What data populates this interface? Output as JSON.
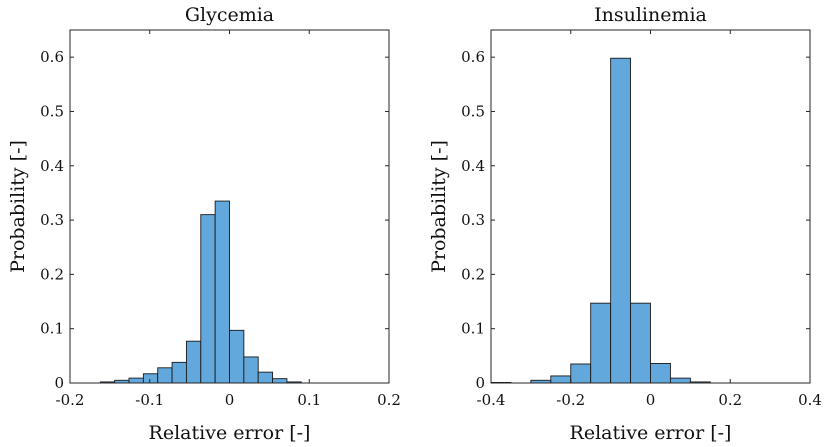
{
  "chart_data": [
    {
      "type": "histogram",
      "title": "Glycemia",
      "xlabel": "Relative error [-]",
      "ylabel": "Probability [-]",
      "xlim": [
        -0.2,
        0.2
      ],
      "ylim": [
        0,
        0.65
      ],
      "xticks": [
        -0.2,
        -0.1,
        0,
        0.1,
        0.2
      ],
      "xtick_labels": [
        "-0.2",
        "-0.1",
        "0",
        "0.1",
        "0.2"
      ],
      "yticks": [
        0,
        0.1,
        0.2,
        0.3,
        0.4,
        0.5,
        0.6
      ],
      "ytick_labels": [
        "0",
        "0.1",
        "0.2",
        "0.3",
        "0.4",
        "0.5",
        "0.6"
      ],
      "bar_color": "#62a8dc",
      "bin_edges": [
        -0.162,
        -0.144,
        -0.126,
        -0.108,
        -0.09,
        -0.072,
        -0.054,
        -0.036,
        -0.018,
        0.0,
        0.018,
        0.036,
        0.054,
        0.072,
        0.09,
        0.108,
        0.126
      ],
      "values": [
        0.002,
        0.005,
        0.009,
        0.017,
        0.028,
        0.038,
        0.077,
        0.31,
        0.335,
        0.097,
        0.048,
        0.02,
        0.008,
        0.002,
        0.0,
        0.0
      ]
    },
    {
      "type": "histogram",
      "title": "Insulinemia",
      "xlabel": "Relative error [-]",
      "ylabel": "Probability [-]",
      "xlim": [
        -0.4,
        0.4
      ],
      "ylim": [
        0,
        0.65
      ],
      "xticks": [
        -0.4,
        -0.2,
        0,
        0.2,
        0.4
      ],
      "xtick_labels": [
        "-0.4",
        "-0.2",
        "0",
        "0.2",
        "0.4"
      ],
      "yticks": [
        0,
        0.1,
        0.2,
        0.3,
        0.4,
        0.5,
        0.6
      ],
      "ytick_labels": [
        "0",
        "0.1",
        "0.2",
        "0.3",
        "0.4",
        "0.5",
        "0.6"
      ],
      "bar_color": "#62a8dc",
      "bin_edges": [
        -0.4,
        -0.35,
        -0.3,
        -0.25,
        -0.2,
        -0.15,
        -0.1,
        -0.05,
        0.0,
        0.05,
        0.1,
        0.15,
        0.2,
        0.25,
        0.3
      ],
      "values": [
        0.001,
        0.0,
        0.005,
        0.013,
        0.035,
        0.147,
        0.598,
        0.147,
        0.036,
        0.009,
        0.002,
        0.0,
        0.0,
        0.0
      ]
    }
  ]
}
